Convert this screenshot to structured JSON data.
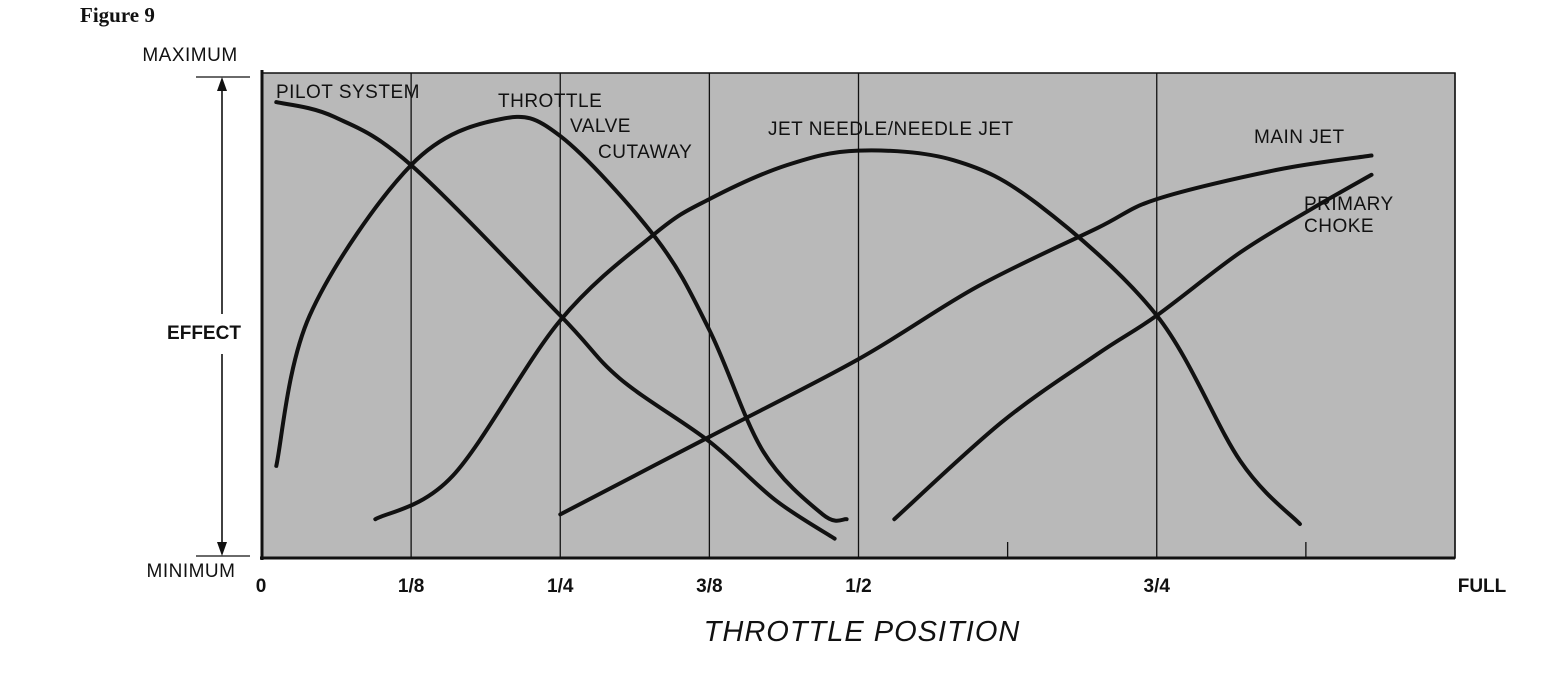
{
  "figure_label": "Figure 9",
  "chart_data": {
    "type": "line",
    "title": "",
    "xlabel": "THROTTLE POSITION",
    "ylabel": "EFFECT",
    "y_top_label": "MAXIMUM",
    "y_bottom_label": "MINIMUM",
    "xlim": [
      0,
      1
    ],
    "ylim": [
      0,
      1
    ],
    "x_ticks": [
      {
        "value": 0,
        "label": "0"
      },
      {
        "value": 0.125,
        "label": "1/8"
      },
      {
        "value": 0.25,
        "label": "1/4"
      },
      {
        "value": 0.375,
        "label": "3/8"
      },
      {
        "value": 0.5,
        "label": "1/2"
      },
      {
        "value": 0.75,
        "label": "3/4"
      },
      {
        "value": 1,
        "label": "FULL"
      }
    ],
    "minor_ticks": [
      0.625,
      0.875
    ],
    "grid_x": [
      0.125,
      0.25,
      0.375,
      0.5,
      0.75,
      1
    ],
    "series": [
      {
        "name": "PILOT SYSTEM",
        "label_lines": [
          "PILOT SYSTEM"
        ],
        "points": [
          [
            0.012,
            0.94
          ],
          [
            0.06,
            0.91
          ],
          [
            0.125,
            0.81
          ],
          [
            0.25,
            0.5
          ],
          [
            0.3,
            0.37
          ],
          [
            0.375,
            0.24
          ],
          [
            0.43,
            0.12
          ],
          [
            0.48,
            0.04
          ]
        ]
      },
      {
        "name": "THROTTLE VALVE CUTAWAY",
        "label_lines": [
          "THROTTLE",
          "VALVE",
          "CUTAWAY"
        ],
        "points": [
          [
            0.012,
            0.19
          ],
          [
            0.04,
            0.5
          ],
          [
            0.125,
            0.81
          ],
          [
            0.2,
            0.905
          ],
          [
            0.25,
            0.87
          ],
          [
            0.33,
            0.66
          ],
          [
            0.375,
            0.47
          ],
          [
            0.42,
            0.22
          ],
          [
            0.47,
            0.09
          ],
          [
            0.49,
            0.08
          ]
        ]
      },
      {
        "name": "JET NEEDLE/NEEDLE JET",
        "label_lines": [
          "JET NEEDLE/NEEDLE JET"
        ],
        "points": [
          [
            0.095,
            0.08
          ],
          [
            0.16,
            0.17
          ],
          [
            0.25,
            0.49
          ],
          [
            0.33,
            0.67
          ],
          [
            0.375,
            0.74
          ],
          [
            0.44,
            0.81
          ],
          [
            0.5,
            0.84
          ],
          [
            0.58,
            0.82
          ],
          [
            0.65,
            0.73
          ],
          [
            0.75,
            0.5
          ],
          [
            0.82,
            0.2
          ],
          [
            0.87,
            0.07
          ]
        ]
      },
      {
        "name": "MAIN JET",
        "label_lines": [
          "MAIN JET"
        ],
        "points": [
          [
            0.25,
            0.09
          ],
          [
            0.375,
            0.25
          ],
          [
            0.5,
            0.41
          ],
          [
            0.6,
            0.56
          ],
          [
            0.7,
            0.68
          ],
          [
            0.75,
            0.74
          ],
          [
            0.85,
            0.8
          ],
          [
            0.93,
            0.83
          ]
        ]
      },
      {
        "name": "PRIMARY CHOKE",
        "label_lines": [
          "PRIMARY",
          "CHOKE"
        ],
        "points": [
          [
            0.53,
            0.08
          ],
          [
            0.62,
            0.28
          ],
          [
            0.7,
            0.42
          ],
          [
            0.75,
            0.5
          ],
          [
            0.82,
            0.63
          ],
          [
            0.88,
            0.72
          ],
          [
            0.93,
            0.79
          ]
        ]
      }
    ]
  }
}
